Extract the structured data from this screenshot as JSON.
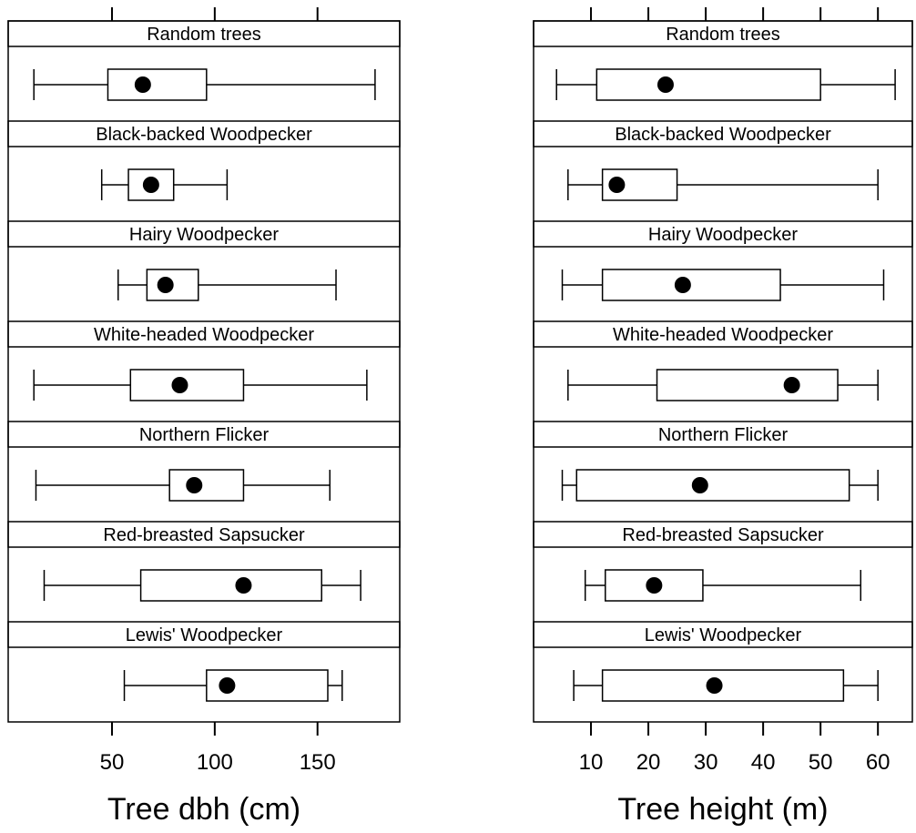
{
  "chart_data": [
    {
      "type": "box",
      "xlabel": "Tree dbh (cm)",
      "ylabel": "",
      "title": "",
      "xlim": [
        -0.5,
        190
      ],
      "x_ticks": [
        50,
        100,
        150
      ],
      "grid": false,
      "legend": "none",
      "panels": [
        {
          "name": "Random trees",
          "min": 12,
          "q1": 48,
          "median": 65,
          "q3": 96,
          "max": 178
        },
        {
          "name": "Black-backed Woodpecker",
          "min": 45,
          "q1": 58,
          "median": 69,
          "q3": 80,
          "max": 106
        },
        {
          "name": "Hairy Woodpecker",
          "min": 53,
          "q1": 67,
          "median": 76,
          "q3": 92,
          "max": 159
        },
        {
          "name": "White-headed Woodpecker",
          "min": 12,
          "q1": 59,
          "median": 83,
          "q3": 114,
          "max": 174
        },
        {
          "name": "Northern Flicker",
          "min": 13,
          "q1": 78,
          "median": 90,
          "q3": 114,
          "max": 156
        },
        {
          "name": "Red-breasted Sapsucker",
          "min": 17,
          "q1": 64,
          "median": 114,
          "q3": 152,
          "max": 171
        },
        {
          "name": "Lewis' Woodpecker",
          "min": 56,
          "q1": 96,
          "median": 106,
          "q3": 155,
          "max": 162
        }
      ]
    },
    {
      "type": "box",
      "xlabel": "Tree height (m)",
      "ylabel": "",
      "title": "",
      "xlim": [
        0,
        66
      ],
      "x_ticks": [
        10,
        20,
        30,
        40,
        50,
        60
      ],
      "grid": false,
      "legend": "none",
      "panels": [
        {
          "name": "Random trees",
          "min": 4,
          "q1": 11,
          "median": 23,
          "q3": 50,
          "max": 63
        },
        {
          "name": "Black-backed Woodpecker",
          "min": 6,
          "q1": 12,
          "median": 14.5,
          "q3": 25,
          "max": 60
        },
        {
          "name": "Hairy Woodpecker",
          "min": 5,
          "q1": 12,
          "median": 26,
          "q3": 43,
          "max": 61
        },
        {
          "name": "White-headed Woodpecker",
          "min": 6,
          "q1": 21.5,
          "median": 45,
          "q3": 53,
          "max": 60
        },
        {
          "name": "Northern Flicker",
          "min": 5,
          "q1": 7.5,
          "median": 29,
          "q3": 55,
          "max": 60
        },
        {
          "name": "Red-breasted Sapsucker",
          "min": 9,
          "q1": 12.5,
          "median": 21,
          "q3": 29.5,
          "max": 57
        },
        {
          "name": "Lewis' Woodpecker",
          "min": 7,
          "q1": 12,
          "median": 31.5,
          "q3": 54,
          "max": 60
        }
      ]
    }
  ]
}
